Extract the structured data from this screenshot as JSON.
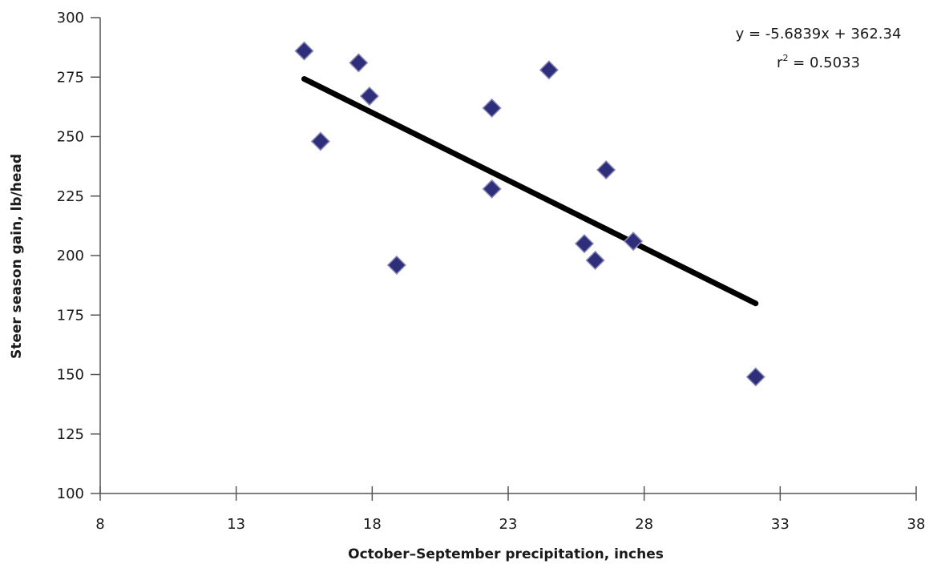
{
  "chart_data": {
    "type": "scatter",
    "title": "",
    "xlabel": "October–September precipitation, inches",
    "ylabel": "Steer season gain, lb/head",
    "xlim": [
      8,
      38
    ],
    "ylim": [
      100,
      300
    ],
    "x_ticks": [
      8,
      13,
      18,
      23,
      28,
      33,
      38
    ],
    "y_ticks": [
      100,
      125,
      150,
      175,
      200,
      225,
      250,
      275,
      300
    ],
    "grid": false,
    "legend": "none",
    "marker": "diamond",
    "marker_color": "#2e2e7a",
    "trendline_color": "#000000",
    "points": [
      {
        "x": 15.5,
        "y": 286
      },
      {
        "x": 16.1,
        "y": 248
      },
      {
        "x": 17.5,
        "y": 281
      },
      {
        "x": 17.9,
        "y": 267
      },
      {
        "x": 18.9,
        "y": 196
      },
      {
        "x": 22.4,
        "y": 262
      },
      {
        "x": 22.4,
        "y": 228
      },
      {
        "x": 24.5,
        "y": 278
      },
      {
        "x": 25.8,
        "y": 205
      },
      {
        "x": 26.2,
        "y": 198
      },
      {
        "x": 26.6,
        "y": 236
      },
      {
        "x": 27.6,
        "y": 206
      },
      {
        "x": 32.1,
        "y": 149
      }
    ],
    "trendline": {
      "slope": -5.6839,
      "intercept": 362.34,
      "x_start": 15.5,
      "x_end": 32.1
    },
    "annotation": {
      "equation": "y = -5.6839x + 362.34",
      "r2_prefix": "r",
      "r2_exp": "2",
      "r2_value": " = 0.5033"
    }
  }
}
